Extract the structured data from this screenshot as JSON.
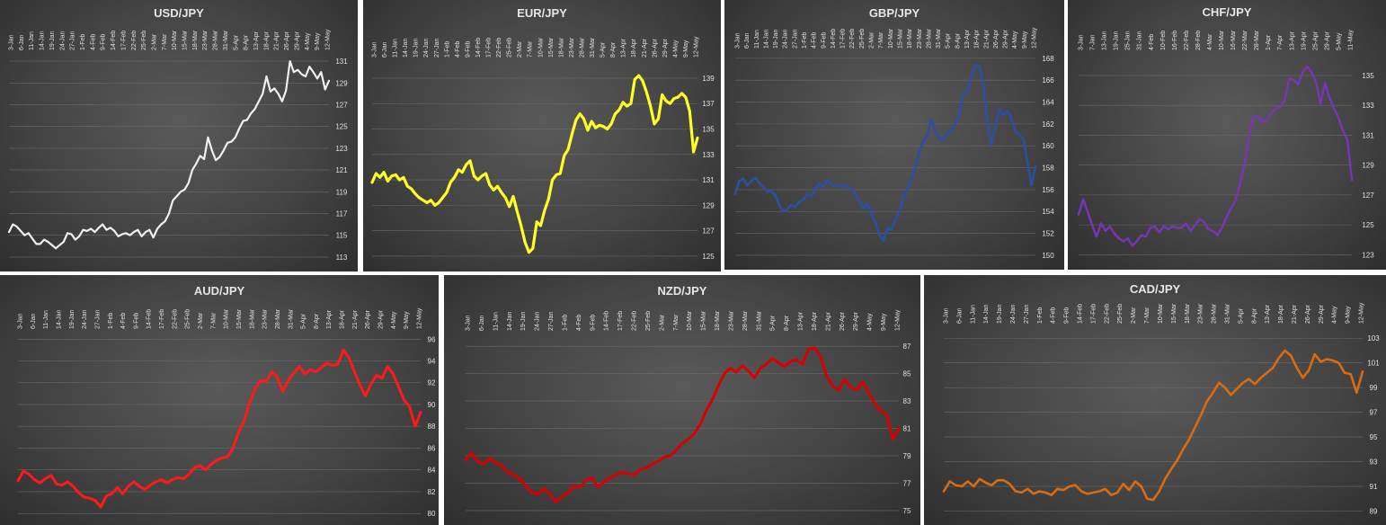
{
  "chart_data": [
    {
      "type": "line",
      "title": "USD/JPY",
      "color": "#f0f0f0",
      "yticks": [
        113,
        115,
        117,
        119,
        121,
        123,
        125,
        127,
        129,
        131
      ],
      "ylim": [
        112.5,
        131.5
      ],
      "x_labels": [
        "3-Jan",
        "6-Jan",
        "11-Jan",
        "14-Jan",
        "19-Jan",
        "24-Jan",
        "27-Jan",
        "1-Feb",
        "4-Feb",
        "9-Feb",
        "14-Feb",
        "17-Feb",
        "22-Feb",
        "25-Feb",
        "2-Mar",
        "7-Mar",
        "10-Mar",
        "15-Mar",
        "18-Mar",
        "23-Mar",
        "28-Mar",
        "31-Mar",
        "5-Apr",
        "8-Apr",
        "13-Apr",
        "18-Apr",
        "21-Apr",
        "26-Apr",
        "29-Apr",
        "4-May",
        "9-May",
        "12-May"
      ],
      "values": [
        115.3,
        116.0,
        115.8,
        115.4,
        115.0,
        115.2,
        114.7,
        114.2,
        114.2,
        114.6,
        114.4,
        114.1,
        113.8,
        114.1,
        114.4,
        115.2,
        115.1,
        114.6,
        114.9,
        115.5,
        115.4,
        115.6,
        115.3,
        115.7,
        116.0,
        115.5,
        115.7,
        115.4,
        114.9,
        115.1,
        115.2,
        115.0,
        115.3,
        115.5,
        114.9,
        115.3,
        115.5,
        114.8,
        115.6,
        116.0,
        116.3,
        117.0,
        118.2,
        118.6,
        119.0,
        119.2,
        119.8,
        121.0,
        121.6,
        122.3,
        122.0,
        124.0,
        122.8,
        121.9,
        122.2,
        122.8,
        123.5,
        123.6,
        124.0,
        124.8,
        125.5,
        125.6,
        126.2,
        126.6,
        127.3,
        128.0,
        129.6,
        128.2,
        128.5,
        128.0,
        127.3,
        128.3,
        131.0,
        130.0,
        130.2,
        129.8,
        129.6,
        130.5,
        130.0,
        129.4,
        130.0,
        128.4,
        129.2
      ]
    },
    {
      "type": "line",
      "title": "EUR/JPY",
      "color": "#ffff26",
      "yticks": [
        125,
        127,
        129,
        131,
        133,
        135,
        137,
        139
      ],
      "ylim": [
        124.5,
        140.2
      ],
      "x_labels": [
        "3-Jan",
        "6-Jan",
        "11-Jan",
        "14-Jan",
        "19-Jan",
        "24-Jan",
        "27-Jan",
        "1-Feb",
        "4-Feb",
        "9-Feb",
        "14-Feb",
        "17-Feb",
        "22-Feb",
        "25-Feb",
        "2-Mar",
        "7-Mar",
        "10-Mar",
        "15-Mar",
        "18-Mar",
        "23-Mar",
        "28-Mar",
        "31-Mar",
        "5-Apr",
        "8-Apr",
        "13-Apr",
        "18-Apr",
        "21-Apr",
        "26-Apr",
        "29-Apr",
        "4-May",
        "9-May",
        "12-May"
      ],
      "values": [
        130.8,
        131.5,
        131.2,
        131.6,
        130.9,
        131.3,
        131.4,
        131.0,
        131.2,
        130.5,
        130.3,
        129.9,
        129.6,
        129.4,
        129.2,
        129.4,
        129.0,
        129.2,
        129.6,
        130.0,
        130.8,
        131.2,
        131.8,
        131.6,
        132.2,
        132.5,
        131.3,
        131.0,
        131.3,
        131.5,
        130.6,
        130.2,
        130.5,
        130.0,
        129.6,
        128.9,
        129.7,
        128.5,
        127.4,
        126.1,
        125.3,
        125.6,
        127.7,
        127.4,
        128.6,
        129.5,
        131.0,
        131.4,
        131.5,
        132.9,
        133.4,
        134.6,
        135.7,
        136.2,
        135.8,
        134.9,
        135.6,
        135.1,
        135.3,
        135.2,
        135.0,
        135.4,
        136.2,
        136.5,
        137.1,
        136.8,
        137.0,
        138.9,
        139.2,
        138.8,
        137.9,
        136.8,
        135.4,
        135.8,
        137.7,
        137.2,
        137.0,
        137.4,
        137.5,
        137.8,
        137.5,
        136.4,
        133.2,
        134.3
      ]
    },
    {
      "type": "line",
      "title": "GBP/JPY",
      "color": "#2c4fa3",
      "yticks": [
        150,
        152,
        154,
        156,
        158,
        160,
        162,
        164,
        166,
        168
      ],
      "ylim": [
        149.5,
        168.4
      ],
      "x_labels": [
        "3-Jan",
        "6-Jan",
        "11-Jan",
        "14-Jan",
        "19-Jan",
        "24-Jan",
        "27-Jan",
        "1-Feb",
        "4-Feb",
        "9-Feb",
        "14-Feb",
        "17-Feb",
        "22-Feb",
        "25-Feb",
        "2-Mar",
        "7-Mar",
        "10-Mar",
        "15-Mar",
        "18-Mar",
        "23-Mar",
        "28-Mar",
        "31-Mar",
        "5-Apr",
        "8-Apr",
        "13-Apr",
        "18-Apr",
        "21-Apr",
        "26-Apr",
        "29-Apr",
        "4-May",
        "9-May",
        "12-May"
      ],
      "values": [
        155.6,
        156.8,
        157.0,
        156.4,
        156.8,
        157.1,
        156.6,
        156.2,
        155.8,
        155.9,
        155.5,
        154.6,
        154.0,
        154.2,
        154.6,
        154.4,
        154.9,
        155.1,
        155.6,
        155.4,
        156.0,
        156.6,
        156.2,
        156.9,
        156.5,
        156.3,
        156.5,
        156.2,
        156.4,
        156.0,
        155.6,
        154.9,
        154.3,
        154.7,
        153.8,
        153.0,
        151.9,
        151.3,
        152.5,
        152.3,
        153.2,
        154.0,
        155.2,
        156.1,
        156.9,
        158.0,
        159.6,
        160.4,
        161.0,
        162.4,
        161.4,
        160.6,
        160.5,
        161.2,
        161.5,
        162.0,
        163.0,
        164.8,
        165.0,
        166.3,
        167.4,
        167.2,
        165.6,
        162.1,
        160.1,
        161.8,
        163.4,
        162.8,
        163.2,
        162.5,
        161.3,
        161.0,
        160.6,
        158.5,
        156.4,
        158.1
      ]
    },
    {
      "type": "line",
      "title": "CHF/JPY",
      "color": "#7a35b5",
      "yticks": [
        123,
        125,
        127,
        129,
        131,
        133,
        135
      ],
      "ylim": [
        122.6,
        136.2
      ],
      "x_labels": [
        "3-Jan",
        "7-Jan",
        "13-Jan",
        "19-Jan",
        "25-Jan",
        "31-Jan",
        "4-Feb",
        "10-Feb",
        "16-Feb",
        "22-Feb",
        "28-Feb",
        "4-Mar",
        "10-Mar",
        "16-Mar",
        "22-Mar",
        "28-Mar",
        "1-Apr",
        "7-Apr",
        "13-Apr",
        "19-Apr",
        "25-Apr",
        "29-Apr",
        "5-May",
        "11-May"
      ],
      "values": [
        125.7,
        126.7,
        125.9,
        125.0,
        124.2,
        125.1,
        124.6,
        124.9,
        124.4,
        124.1,
        123.9,
        124.1,
        123.6,
        123.9,
        124.3,
        124.2,
        124.8,
        124.9,
        124.5,
        124.9,
        124.7,
        124.9,
        124.8,
        124.8,
        125.1,
        124.6,
        125.0,
        125.4,
        125.2,
        124.7,
        124.6,
        124.3,
        124.8,
        125.5,
        126.1,
        126.6,
        127.7,
        129.0,
        130.9,
        132.2,
        132.3,
        131.9,
        132.0,
        132.5,
        132.8,
        132.9,
        133.3,
        134.8,
        134.7,
        134.4,
        135.2,
        135.6,
        135.2,
        134.6,
        133.1,
        134.5,
        133.5,
        132.8,
        132.2,
        131.3,
        130.7,
        128.0
      ]
    },
    {
      "type": "line",
      "title": "AUD/JPY",
      "color": "#ff1a1a",
      "yticks": [
        80,
        82,
        84,
        86,
        88,
        90,
        92,
        94,
        96
      ],
      "ylim": [
        79.6,
        96.6
      ],
      "x_labels": [
        "3-Jan",
        "6-Jan",
        "11-Jan",
        "14-Jan",
        "19-Jan",
        "24-Jan",
        "27-Jan",
        "1-Feb",
        "4-Feb",
        "9-Feb",
        "14-Feb",
        "17-Feb",
        "22-Feb",
        "25-Feb",
        "2-Mar",
        "7-Mar",
        "10-Mar",
        "15-Mar",
        "18-Mar",
        "23-Mar",
        "28-Mar",
        "31-Mar",
        "5-Apr",
        "8-Apr",
        "13-Apr",
        "18-Apr",
        "21-Apr",
        "26-Apr",
        "29-Apr",
        "4-May",
        "9-May",
        "12-May"
      ],
      "values": [
        83.0,
        83.9,
        83.6,
        83.1,
        82.8,
        83.2,
        83.5,
        82.7,
        82.6,
        82.9,
        82.5,
        81.9,
        81.5,
        81.4,
        81.2,
        80.6,
        81.6,
        81.8,
        82.4,
        81.8,
        82.5,
        82.9,
        82.5,
        82.2,
        82.6,
        82.9,
        83.1,
        82.8,
        83.1,
        83.3,
        83.2,
        83.6,
        84.2,
        84.4,
        84.0,
        84.5,
        84.9,
        85.1,
        85.2,
        86.0,
        87.5,
        88.5,
        90.2,
        91.5,
        92.2,
        92.1,
        93.0,
        92.5,
        91.2,
        92.2,
        92.9,
        93.5,
        92.8,
        93.2,
        93.0,
        93.4,
        93.8,
        93.6,
        93.7,
        95.0,
        94.3,
        93.0,
        91.8,
        90.8,
        91.9,
        92.7,
        92.4,
        93.5,
        92.8,
        91.6,
        90.4,
        89.8,
        88.0,
        89.3
      ]
    },
    {
      "type": "line",
      "title": "NZD/JPY",
      "color": "#d80000",
      "yticks": [
        75,
        77,
        79,
        81,
        83,
        85,
        87
      ],
      "ylim": [
        74.6,
        87.6
      ],
      "x_labels": [
        "3-Jan",
        "6-Jan",
        "11-Jan",
        "14-Jan",
        "19-Jan",
        "24-Jan",
        "27-Jan",
        "1-Feb",
        "4-Feb",
        "9-Feb",
        "14-Feb",
        "17-Feb",
        "22-Feb",
        "25-Feb",
        "2-Mar",
        "7-Mar",
        "10-Mar",
        "15-Mar",
        "18-Mar",
        "23-Mar",
        "28-Mar",
        "31-Mar",
        "5-Apr",
        "8-Apr",
        "13-Apr",
        "18-Apr",
        "21-Apr",
        "26-Apr",
        "29-Apr",
        "4-May",
        "9-May",
        "12-May"
      ],
      "values": [
        78.7,
        79.2,
        78.6,
        78.4,
        78.8,
        78.5,
        78.3,
        77.8,
        77.6,
        77.3,
        76.8,
        76.3,
        76.2,
        76.6,
        76.2,
        75.6,
        76.0,
        76.3,
        76.8,
        76.7,
        77.2,
        77.4,
        76.7,
        77.1,
        77.4,
        77.6,
        77.8,
        77.7,
        77.6,
        78.0,
        78.1,
        78.4,
        78.6,
        78.9,
        79.0,
        79.4,
        79.9,
        80.2,
        80.6,
        81.3,
        82.3,
        83.1,
        84.1,
        85.0,
        85.4,
        85.1,
        85.6,
        85.2,
        84.7,
        85.4,
        85.7,
        86.1,
        85.8,
        85.5,
        85.9,
        86.0,
        85.7,
        86.8,
        86.9,
        86.2,
        84.8,
        84.1,
        83.8,
        84.6,
        84.0,
        83.8,
        84.4,
        83.6,
        82.8,
        82.3,
        82.0,
        80.2,
        81.0
      ]
    },
    {
      "type": "line",
      "title": "CAD/JPY",
      "color": "#d96b12",
      "yticks": [
        89,
        91,
        93,
        95,
        97,
        99,
        101,
        103
      ],
      "ylim": [
        88.6,
        103.6
      ],
      "x_labels": [
        "3-Jan",
        "6-Jan",
        "11-Jan",
        "14-Jan",
        "19-Jan",
        "24-Jan",
        "27-Jan",
        "1-Feb",
        "4-Feb",
        "9-Feb",
        "14-Feb",
        "17-Feb",
        "22-Feb",
        "25-Feb",
        "2-Mar",
        "7-Mar",
        "10-Mar",
        "15-Mar",
        "18-Mar",
        "23-Mar",
        "28-Mar",
        "31-Mar",
        "5-Apr",
        "8-Apr",
        "13-Apr",
        "18-Apr",
        "21-Apr",
        "26-Apr",
        "29-Apr",
        "4-May",
        "9-May",
        "12-May"
      ],
      "values": [
        90.6,
        91.4,
        91.1,
        91.0,
        91.4,
        91.0,
        91.6,
        91.3,
        91.1,
        91.5,
        91.5,
        91.2,
        90.6,
        90.5,
        90.8,
        90.4,
        90.6,
        90.5,
        90.3,
        90.8,
        90.7,
        91.0,
        91.1,
        90.6,
        90.4,
        90.5,
        90.6,
        90.8,
        90.3,
        90.5,
        91.2,
        90.7,
        91.4,
        91.0,
        90.0,
        89.9,
        90.6,
        91.6,
        92.4,
        93.1,
        94.0,
        94.8,
        95.8,
        96.8,
        97.9,
        98.6,
        99.4,
        99.0,
        98.4,
        98.9,
        99.4,
        99.7,
        99.3,
        99.8,
        100.2,
        100.6,
        101.4,
        102.0,
        101.6,
        100.6,
        99.8,
        100.4,
        101.7,
        101.1,
        101.3,
        101.2,
        101.0,
        100.2,
        100.1,
        98.6,
        100.3
      ]
    }
  ]
}
